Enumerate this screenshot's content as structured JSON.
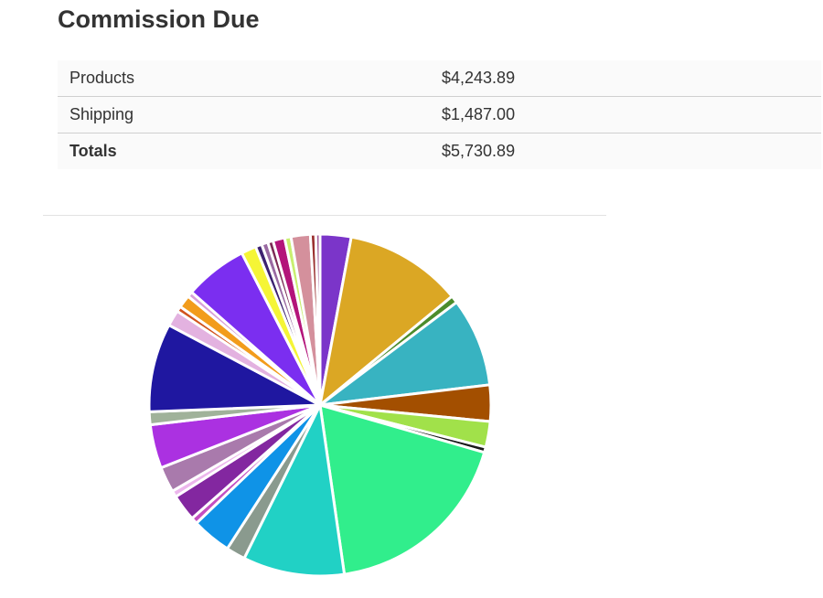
{
  "title": "Commission Due",
  "table": {
    "rows": [
      {
        "label": "Products",
        "value": "$4,243.89"
      },
      {
        "label": "Shipping",
        "value": "$1,487.00"
      },
      {
        "label": "Totals",
        "value": "$5,730.89"
      }
    ]
  },
  "chart_data": {
    "type": "pie",
    "title": "",
    "legend": "none",
    "start_angle_deg": 0,
    "direction": "clockwise",
    "slices": [
      {
        "value": 2.9,
        "color": "#7b35c9"
      },
      {
        "value": 11.0,
        "color": "#dba724"
      },
      {
        "value": 0.7,
        "color": "#4b8c2b"
      },
      {
        "value": 8.3,
        "color": "#38b3c1"
      },
      {
        "value": 3.4,
        "color": "#a34f00"
      },
      {
        "value": 2.4,
        "color": "#a1e14a"
      },
      {
        "value": 0.5,
        "color": "#1a1a1a"
      },
      {
        "value": 18.1,
        "color": "#31ee8c"
      },
      {
        "value": 9.5,
        "color": "#21d1c5"
      },
      {
        "value": 1.8,
        "color": "#8a9a8e"
      },
      {
        "value": 3.7,
        "color": "#0f93e7"
      },
      {
        "value": 0.6,
        "color": "#c34fc1"
      },
      {
        "value": 2.5,
        "color": "#8327a0"
      },
      {
        "value": 0.6,
        "color": "#ecb6ec"
      },
      {
        "value": 2.4,
        "color": "#a97aac"
      },
      {
        "value": 4.1,
        "color": "#ab31e1"
      },
      {
        "value": 1.2,
        "color": "#a0b29a"
      },
      {
        "value": 8.3,
        "color": "#1f17a0"
      },
      {
        "value": 1.5,
        "color": "#e3b2e0"
      },
      {
        "value": 0.5,
        "color": "#d1531d"
      },
      {
        "value": 1.2,
        "color": "#f29c1c"
      },
      {
        "value": 0.5,
        "color": "#d8a0d8"
      },
      {
        "value": 5.9,
        "color": "#7b2ef0"
      },
      {
        "value": 1.4,
        "color": "#f5f536"
      },
      {
        "value": 0.6,
        "color": "#3d2270"
      },
      {
        "value": 0.6,
        "color": "#9a6aa2"
      },
      {
        "value": 0.5,
        "color": "#7c2a55"
      },
      {
        "value": 1.1,
        "color": "#b3147a"
      },
      {
        "value": 0.6,
        "color": "#c9ef70"
      },
      {
        "value": 1.8,
        "color": "#d4909c"
      },
      {
        "value": 0.5,
        "color": "#9a3030"
      },
      {
        "value": 0.4,
        "color": "#a8609c"
      }
    ]
  }
}
